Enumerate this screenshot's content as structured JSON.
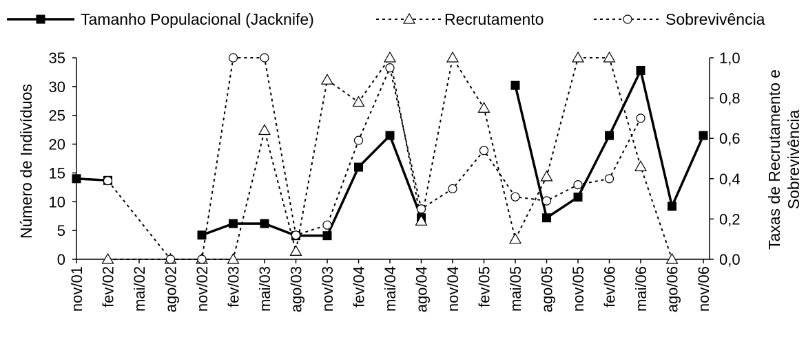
{
  "chart_data": {
    "type": "line",
    "categories": [
      "nov/01",
      "fev/02",
      "mai/02",
      "ago/02",
      "nov/02",
      "fev/03",
      "mai/03",
      "ago/03",
      "nov/03",
      "fev/04",
      "mai/04",
      "ago/04",
      "nov/04",
      "fev/05",
      "mai/05",
      "ago/05",
      "nov/05",
      "fev/06",
      "mai/06",
      "ago/06",
      "nov/06"
    ],
    "y_left": {
      "label": "Número de Indivíduos",
      "ylim": [
        0,
        35
      ],
      "ticks": [
        "0",
        "5",
        "10",
        "15",
        "20",
        "25",
        "30",
        "35"
      ]
    },
    "y_right": {
      "label_line1": "Taxas de Recrutamento e",
      "label_line2": "Sobrevivência",
      "ylim": [
        0,
        1
      ],
      "ticks": [
        "0,0",
        "0,2",
        "0,4",
        "0,6",
        "0,8",
        "1,0"
      ]
    },
    "series": [
      {
        "name": "Tamanho Populacional (Jacknife)",
        "axis": "left",
        "style": "solid",
        "marker": "square",
        "values": [
          14,
          13.7,
          null,
          null,
          4.2,
          6.2,
          6.2,
          4.1,
          4.1,
          16,
          21.5,
          7.2,
          null,
          null,
          30.2,
          7.2,
          10.8,
          21.5,
          32.8,
          9.2,
          21.5
        ],
        "segments": [
          [
            0,
            1
          ],
          [
            4,
            11
          ],
          [
            14,
            20
          ]
        ]
      },
      {
        "name": "Recrutamento",
        "axis": "right",
        "style": "dotted",
        "marker": "triangle",
        "values": [
          null,
          0.0,
          null,
          0.0,
          0.0,
          0.0,
          0.64,
          0.04,
          0.89,
          0.78,
          1.0,
          0.19,
          1.0,
          0.75,
          0.1,
          0.41,
          1.0,
          1.0,
          0.46,
          0.0,
          null
        ],
        "segments": [
          [
            1,
            19
          ]
        ]
      },
      {
        "name": "Sobrevivência",
        "axis": "right",
        "style": "dotted",
        "marker": "circle",
        "values": [
          null,
          0.39,
          null,
          0.0,
          0.0,
          1.0,
          1.0,
          0.12,
          0.17,
          0.59,
          0.95,
          0.25,
          0.35,
          0.54,
          0.31,
          0.29,
          0.37,
          0.4,
          0.7,
          null,
          null
        ],
        "segments": [
          [
            1,
            18
          ]
        ]
      }
    ],
    "grid": false,
    "legend_placement": "top"
  }
}
